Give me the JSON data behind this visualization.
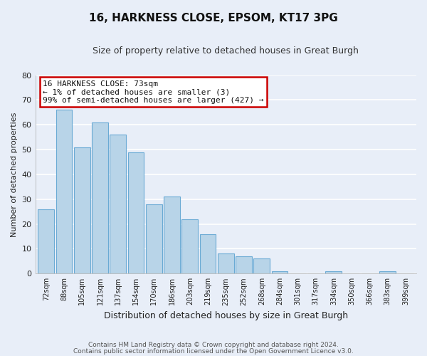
{
  "title": "16, HARKNESS CLOSE, EPSOM, KT17 3PG",
  "subtitle": "Size of property relative to detached houses in Great Burgh",
  "xlabel": "Distribution of detached houses by size in Great Burgh",
  "ylabel": "Number of detached properties",
  "bar_color": "#b8d4e8",
  "bar_edge_color": "#6aaad4",
  "categories": [
    "72sqm",
    "88sqm",
    "105sqm",
    "121sqm",
    "137sqm",
    "154sqm",
    "170sqm",
    "186sqm",
    "203sqm",
    "219sqm",
    "235sqm",
    "252sqm",
    "268sqm",
    "284sqm",
    "301sqm",
    "317sqm",
    "334sqm",
    "350sqm",
    "366sqm",
    "383sqm",
    "399sqm"
  ],
  "values": [
    26,
    66,
    51,
    61,
    56,
    49,
    28,
    31,
    22,
    16,
    8,
    7,
    6,
    1,
    0,
    0,
    1,
    0,
    0,
    1,
    0
  ],
  "ylim": [
    0,
    80
  ],
  "yticks": [
    0,
    10,
    20,
    30,
    40,
    50,
    60,
    70,
    80
  ],
  "annotation_line1": "16 HARKNESS CLOSE: 73sqm",
  "annotation_line2": "← 1% of detached houses are smaller (3)",
  "annotation_line3": "99% of semi-detached houses are larger (427) →",
  "annotation_box_color": "#ffffff",
  "annotation_box_edge_color": "#cc0000",
  "footer_line1": "Contains HM Land Registry data © Crown copyright and database right 2024.",
  "footer_line2": "Contains public sector information licensed under the Open Government Licence v3.0.",
  "background_color": "#e8eef8",
  "plot_bg_color": "#e8eef8",
  "grid_color": "#ffffff"
}
